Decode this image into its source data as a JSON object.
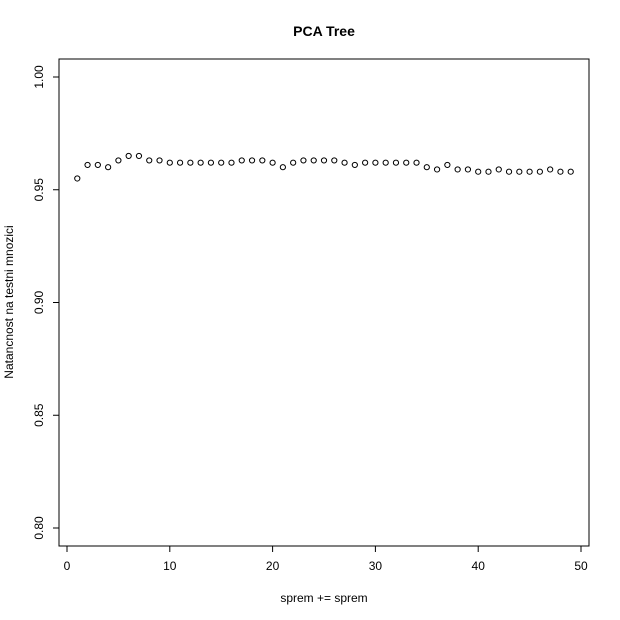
{
  "chart_data": {
    "type": "scatter",
    "title": "PCA Tree",
    "xlabel": "sprem += sprem",
    "ylabel": "Natancnost na testni mnozici",
    "xlim": [
      0,
      50
    ],
    "ylim": [
      0.8,
      1.0
    ],
    "xticks": [
      0,
      10,
      20,
      30,
      40,
      50
    ],
    "yticks": [
      0.8,
      0.85,
      0.9,
      0.95,
      1.0
    ],
    "xtick_labels": [
      "0",
      "10",
      "20",
      "30",
      "40",
      "50"
    ],
    "ytick_labels": [
      "0.80",
      "0.85",
      "0.90",
      "0.95",
      "1.00"
    ],
    "grid": false,
    "marker": "open-circle",
    "series": [
      {
        "x": [
          1,
          2,
          3,
          4,
          5,
          6,
          7,
          8,
          9,
          10,
          11,
          12,
          13,
          14,
          15,
          16,
          17,
          18,
          19,
          20,
          21,
          22,
          23,
          24,
          25,
          26,
          27,
          28,
          29,
          30,
          31,
          32,
          33,
          34,
          35,
          36,
          37,
          38,
          39,
          40,
          41,
          42,
          43,
          44,
          45,
          46,
          47,
          48,
          49
        ],
        "values": [
          0.955,
          0.961,
          0.961,
          0.96,
          0.963,
          0.965,
          0.965,
          0.963,
          0.963,
          0.962,
          0.962,
          0.962,
          0.962,
          0.962,
          0.962,
          0.962,
          0.963,
          0.963,
          0.963,
          0.962,
          0.96,
          0.962,
          0.963,
          0.963,
          0.963,
          0.963,
          0.962,
          0.961,
          0.962,
          0.962,
          0.962,
          0.962,
          0.962,
          0.962,
          0.96,
          0.959,
          0.961,
          0.959,
          0.959,
          0.958,
          0.958,
          0.959,
          0.958,
          0.958,
          0.958,
          0.958,
          0.959,
          0.958,
          0.958
        ]
      }
    ]
  }
}
